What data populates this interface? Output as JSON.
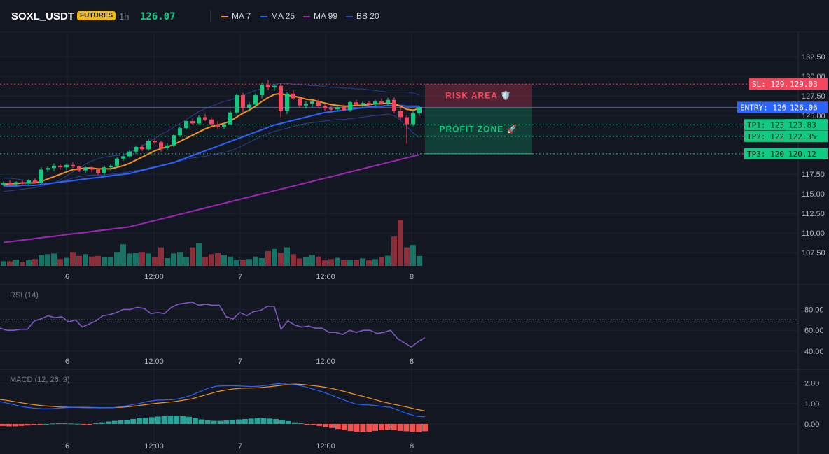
{
  "header": {
    "symbol": "SOXL_USDT",
    "badge": "FUTURES",
    "timeframe": "1h",
    "price": "126.07",
    "legend": [
      {
        "name": "MA 7",
        "color": "#f7931a"
      },
      {
        "name": "MA 25",
        "color": "#2962ff"
      },
      {
        "name": "MA 99",
        "color": "#9c27b0"
      },
      {
        "name": "BB 20",
        "color": "#3049a8"
      }
    ]
  },
  "colors": {
    "up": "#0ecb81",
    "down": "#f6465d",
    "grid": "#1e222d",
    "axis": "#b2b5be"
  },
  "chart_data": [
    {
      "type": "candlestick",
      "panel": "price",
      "ylim": [
        106.0,
        133.5
      ],
      "y_ticks": [
        "132.50",
        "130.00",
        "127.50",
        "125.00",
        "122.50",
        "120.00",
        "117.50",
        "115.00",
        "112.50",
        "110.00",
        "107.50"
      ],
      "x_labels": [
        "6",
        "12:00",
        "7",
        "12:00",
        "8"
      ],
      "candles": [
        [
          116.2,
          116.6,
          116.0,
          116.4
        ],
        [
          116.4,
          116.7,
          116.1,
          116.3
        ],
        [
          116.3,
          116.6,
          116.0,
          116.5
        ],
        [
          116.5,
          116.8,
          116.2,
          116.3
        ],
        [
          116.3,
          116.9,
          116.1,
          116.7
        ],
        [
          116.7,
          117.0,
          116.3,
          116.4
        ],
        [
          116.4,
          118.4,
          116.3,
          118.1
        ],
        [
          118.1,
          118.5,
          117.8,
          118.3
        ],
        [
          118.3,
          118.9,
          117.9,
          118.6
        ],
        [
          118.6,
          118.8,
          118.1,
          118.4
        ],
        [
          118.4,
          118.9,
          118.0,
          118.7
        ],
        [
          118.7,
          119.0,
          118.3,
          118.5
        ],
        [
          118.5,
          118.6,
          117.8,
          118.0
        ],
        [
          118.0,
          118.6,
          117.6,
          118.3
        ],
        [
          118.3,
          118.5,
          117.8,
          118.1
        ],
        [
          118.1,
          118.3,
          117.4,
          117.7
        ],
        [
          117.7,
          118.6,
          117.4,
          118.4
        ],
        [
          118.4,
          118.8,
          118.0,
          118.6
        ],
        [
          118.6,
          119.7,
          118.4,
          119.5
        ],
        [
          119.5,
          120.0,
          119.2,
          119.8
        ],
        [
          119.8,
          120.6,
          119.6,
          120.4
        ],
        [
          120.4,
          121.2,
          120.1,
          121.0
        ],
        [
          121.0,
          121.3,
          120.5,
          120.7
        ],
        [
          120.7,
          122.0,
          120.5,
          121.8
        ],
        [
          121.8,
          122.0,
          121.4,
          121.6
        ],
        [
          121.6,
          121.8,
          120.4,
          120.9
        ],
        [
          120.9,
          121.5,
          120.6,
          121.2
        ],
        [
          121.2,
          122.6,
          121.0,
          122.5
        ],
        [
          122.5,
          123.5,
          122.3,
          123.4
        ],
        [
          123.4,
          124.4,
          123.2,
          124.3
        ],
        [
          124.3,
          124.6,
          123.8,
          124.0
        ],
        [
          124.0,
          125.0,
          123.8,
          124.8
        ],
        [
          124.8,
          125.2,
          124.3,
          124.5
        ],
        [
          124.5,
          124.8,
          123.6,
          123.9
        ],
        [
          123.9,
          124.3,
          123.3,
          123.6
        ],
        [
          123.6,
          124.1,
          123.3,
          123.9
        ],
        [
          123.9,
          125.6,
          123.8,
          125.4
        ],
        [
          125.4,
          127.8,
          125.2,
          127.6
        ],
        [
          127.6,
          127.9,
          125.3,
          126.0
        ],
        [
          126.0,
          126.7,
          125.5,
          126.4
        ],
        [
          126.4,
          127.8,
          126.0,
          127.6
        ],
        [
          127.6,
          129.2,
          127.2,
          128.9
        ],
        [
          128.9,
          129.5,
          128.3,
          128.6
        ],
        [
          128.6,
          129.0,
          128.2,
          128.8
        ],
        [
          128.8,
          129.1,
          124.8,
          125.6
        ],
        [
          125.6,
          128.0,
          125.2,
          127.8
        ],
        [
          127.8,
          128.2,
          127.0,
          127.2
        ],
        [
          127.2,
          127.4,
          126.0,
          126.3
        ],
        [
          126.3,
          126.9,
          125.9,
          126.5
        ],
        [
          126.5,
          127.0,
          126.0,
          126.8
        ],
        [
          126.8,
          127.1,
          126.0,
          126.2
        ],
        [
          126.2,
          126.5,
          125.6,
          125.9
        ],
        [
          125.9,
          126.2,
          125.4,
          125.8
        ],
        [
          125.8,
          126.3,
          125.5,
          126.1
        ],
        [
          126.1,
          126.4,
          125.6,
          125.7
        ],
        [
          125.7,
          126.9,
          125.5,
          126.7
        ],
        [
          126.7,
          127.0,
          126.2,
          126.4
        ],
        [
          126.4,
          126.8,
          126.1,
          126.6
        ],
        [
          126.6,
          126.9,
          126.2,
          126.4
        ],
        [
          126.4,
          127.0,
          126.1,
          126.8
        ],
        [
          126.8,
          127.2,
          126.4,
          126.6
        ],
        [
          126.6,
          127.3,
          126.3,
          127.0
        ],
        [
          127.0,
          127.3,
          125.3,
          125.6
        ],
        [
          125.6,
          126.2,
          124.4,
          124.8
        ],
        [
          124.8,
          125.1,
          121.4,
          123.9
        ],
        [
          123.9,
          125.7,
          123.6,
          125.3
        ],
        [
          125.3,
          126.2,
          125.0,
          126.07
        ]
      ],
      "ma7": [
        116.2,
        116.3,
        116.3,
        116.4,
        116.4,
        116.4,
        116.6,
        116.9,
        117.2,
        117.5,
        117.8,
        118.1,
        118.2,
        118.3,
        118.3,
        118.2,
        118.2,
        118.2,
        118.4,
        118.6,
        118.9,
        119.3,
        119.7,
        120.1,
        120.5,
        120.8,
        121.0,
        121.3,
        121.7,
        122.1,
        122.5,
        122.9,
        123.3,
        123.6,
        123.8,
        124.0,
        124.3,
        124.8,
        125.3,
        125.7,
        126.2,
        126.8,
        127.3,
        127.7,
        127.8,
        127.6,
        127.5,
        127.3,
        127.1,
        127.0,
        126.8,
        126.6,
        126.4,
        126.3,
        126.2,
        126.2,
        126.3,
        126.3,
        126.4,
        126.5,
        126.5,
        126.6,
        126.5,
        126.2,
        125.8,
        125.7,
        125.9
      ],
      "ma25": [
        116.0,
        116.0,
        116.0,
        116.1,
        116.1,
        116.1,
        116.2,
        116.3,
        116.4,
        116.5,
        116.6,
        116.7,
        116.8,
        116.9,
        117.0,
        117.1,
        117.2,
        117.3,
        117.4,
        117.5,
        117.6,
        117.8,
        118.0,
        118.2,
        118.4,
        118.6,
        118.8,
        119.0,
        119.3,
        119.6,
        119.9,
        120.2,
        120.5,
        120.8,
        121.1,
        121.4,
        121.7,
        122.0,
        122.3,
        122.6,
        122.9,
        123.2,
        123.5,
        123.8,
        124.0,
        124.2,
        124.4,
        124.6,
        124.8,
        125.0,
        125.2,
        125.4,
        125.5,
        125.6,
        125.7,
        125.8,
        125.9,
        126.0,
        126.1,
        126.2,
        126.2,
        126.3,
        126.3,
        126.3,
        126.2,
        126.2,
        126.2
      ],
      "ma99": [
        108.8,
        108.9,
        109.0,
        109.1,
        109.2,
        109.3,
        109.4,
        109.5,
        109.6,
        109.7,
        109.8,
        109.9,
        110.0,
        110.1,
        110.2,
        110.3,
        110.4,
        110.5,
        110.6,
        110.7,
        110.8,
        111.0,
        111.2,
        111.4,
        111.6,
        111.8,
        112.0,
        112.2,
        112.4,
        112.6,
        112.8,
        113.0,
        113.2,
        113.4,
        113.6,
        113.8,
        114.0,
        114.2,
        114.4,
        114.6,
        114.8,
        115.0,
        115.2,
        115.4,
        115.6,
        115.8,
        116.0,
        116.2,
        116.4,
        116.6,
        116.8,
        117.0,
        117.2,
        117.4,
        117.6,
        117.8,
        118.0,
        118.2,
        118.4,
        118.6,
        118.8,
        119.0,
        119.2,
        119.4,
        119.6,
        119.8,
        120.0
      ],
      "bb_upper": [
        117.0,
        117.0,
        116.9,
        116.8,
        116.7,
        116.5,
        116.3,
        116.2,
        116.4,
        116.8,
        117.3,
        117.8,
        118.3,
        118.8,
        119.2,
        119.5,
        119.7,
        119.8,
        119.9,
        120.0,
        120.3,
        120.7,
        121.1,
        121.6,
        122.1,
        122.6,
        123.0,
        123.5,
        124.0,
        124.5,
        125.0,
        125.5,
        125.9,
        126.2,
        126.5,
        126.8,
        127.0,
        127.3,
        127.6,
        127.9,
        128.2,
        128.5,
        128.8,
        129.0,
        129.1,
        129.1,
        129.0,
        129.0,
        128.9,
        128.8,
        128.8,
        128.7,
        128.6,
        128.6,
        128.5,
        128.5,
        128.4,
        128.4,
        128.3,
        128.2,
        128.1,
        128.0,
        128.0,
        128.0,
        128.0,
        127.9,
        127.6
      ],
      "bb_lower": [
        115.3,
        115.4,
        115.5,
        115.6,
        115.7,
        115.8,
        116.0,
        116.2,
        116.4,
        116.6,
        116.8,
        117.0,
        117.2,
        117.3,
        117.4,
        117.4,
        117.4,
        117.5,
        117.6,
        117.7,
        117.8,
        118.0,
        118.1,
        118.3,
        118.5,
        118.6,
        118.8,
        119.0,
        119.2,
        119.4,
        119.6,
        119.7,
        119.8,
        120.0,
        120.1,
        120.3,
        120.5,
        120.8,
        121.2,
        121.6,
        122.0,
        122.4,
        122.7,
        123.0,
        123.2,
        123.4,
        123.6,
        123.8,
        124.0,
        124.1,
        124.2,
        124.3,
        124.4,
        124.5,
        124.5,
        124.6,
        124.7,
        124.8,
        124.9,
        125.0,
        125.1,
        125.2,
        125.0,
        124.4,
        123.6,
        122.8,
        122.2
      ],
      "volume": [
        15,
        15,
        20,
        12,
        18,
        22,
        35,
        38,
        40,
        22,
        26,
        45,
        32,
        38,
        30,
        32,
        28,
        28,
        45,
        70,
        40,
        42,
        45,
        40,
        28,
        60,
        25,
        40,
        45,
        28,
        60,
        75,
        28,
        38,
        42,
        35,
        30,
        18,
        20,
        22,
        30,
        25,
        48,
        55,
        42,
        60,
        38,
        24,
        28,
        35,
        30,
        18,
        22,
        26,
        20,
        18,
        20,
        24,
        18,
        22,
        28,
        33,
        95,
        150,
        60,
        68,
        32
      ],
      "volume_dir": [
        1,
        -1,
        1,
        -1,
        1,
        -1,
        1,
        1,
        1,
        -1,
        1,
        -1,
        -1,
        1,
        -1,
        -1,
        1,
        1,
        1,
        1,
        1,
        1,
        -1,
        1,
        -1,
        -1,
        1,
        1,
        1,
        1,
        -1,
        1,
        -1,
        -1,
        -1,
        1,
        1,
        1,
        -1,
        1,
        1,
        1,
        -1,
        1,
        -1,
        1,
        -1,
        -1,
        1,
        1,
        -1,
        -1,
        -1,
        1,
        -1,
        1,
        -1,
        1,
        -1,
        1,
        -1,
        1,
        -1,
        -1,
        -1,
        1,
        1
      ],
      "annotations": {
        "sl": {
          "value": 129.03,
          "label": "SL: 129.03",
          "value_label": "129.03",
          "color": "#f6465d"
        },
        "entry": {
          "value": 126.06,
          "label": "ENTRY: 126.06",
          "value_label": "126.06",
          "color": "#2962ff"
        },
        "tps": [
          {
            "value": 123.83,
            "label": "TP1: 123.83",
            "value_label": "123.83"
          },
          {
            "value": 122.35,
            "label": "TP2: 122.35",
            "value_label": "122.35"
          },
          {
            "value": 120.12,
            "label": "TP3: 120.12",
            "value_label": "120.12"
          }
        ],
        "risk_area_label": "RISK AREA 🛡️",
        "profit_zone_label": "PROFIT ZONE 🚀"
      }
    },
    {
      "type": "line",
      "panel": "rsi",
      "title": "RSI (14)",
      "ylim": [
        38,
        95
      ],
      "y_ticks": [
        "80.00",
        "60.00",
        "40.00"
      ],
      "x_labels": [
        "6",
        "12:00",
        "7",
        "12:00",
        "8"
      ],
      "level": 70,
      "values": [
        62,
        60,
        60,
        61,
        61,
        69,
        71,
        74,
        72,
        73,
        68,
        70,
        63,
        66,
        69,
        74,
        75,
        77,
        80,
        80,
        82,
        81,
        76,
        77,
        76,
        82,
        85,
        86,
        87,
        84,
        85,
        84,
        84,
        73,
        71,
        77,
        74,
        78,
        79,
        83,
        83,
        61,
        69,
        65,
        63,
        64,
        62,
        62,
        58,
        58,
        56,
        60,
        58,
        60,
        60,
        57,
        58,
        60,
        52,
        48,
        44,
        49,
        53
      ]
    },
    {
      "type": "line",
      "panel": "macd",
      "title": "MACD (12, 26, 9)",
      "ylim": [
        -0.55,
        2.4
      ],
      "y_ticks": [
        "2.00",
        "1.00",
        "0.00"
      ],
      "x_labels": [
        "6",
        "12:00",
        "7",
        "12:00",
        "8"
      ],
      "macd": [
        1.1,
        1.0,
        0.9,
        0.82,
        0.77,
        0.74,
        0.75,
        0.78,
        0.81,
        0.82,
        0.82,
        0.81,
        0.79,
        0.8,
        0.85,
        0.92,
        1.0,
        1.1,
        1.16,
        1.18,
        1.19,
        1.27,
        1.4,
        1.58,
        1.75,
        1.85,
        1.87,
        1.87,
        1.85,
        1.83,
        1.85,
        1.91,
        1.97,
        1.95,
        1.92,
        1.84,
        1.72,
        1.6,
        1.45,
        1.28,
        1.12,
        0.98,
        0.94,
        0.92,
        0.86,
        0.82,
        0.66,
        0.5,
        0.38,
        0.35
      ],
      "signal": [
        1.2,
        1.14,
        1.07,
        1.0,
        0.94,
        0.89,
        0.86,
        0.83,
        0.82,
        0.81,
        0.8,
        0.8,
        0.79,
        0.8,
        0.82,
        0.85,
        0.9,
        0.96,
        1.01,
        1.05,
        1.09,
        1.15,
        1.22,
        1.34,
        1.46,
        1.58,
        1.66,
        1.72,
        1.75,
        1.76,
        1.78,
        1.82,
        1.87,
        1.92,
        1.95,
        1.93,
        1.88,
        1.83,
        1.76,
        1.67,
        1.56,
        1.44,
        1.34,
        1.22,
        1.1,
        1.0,
        0.91,
        0.82,
        0.72,
        0.64
      ],
      "histogram": [
        -0.1,
        -0.12,
        -0.12,
        -0.1,
        -0.08,
        -0.06,
        -0.03,
        0.0,
        0.02,
        0.03,
        0.03,
        0.02,
        0.01,
        -0.02,
        -0.05,
        0.04,
        0.08,
        0.12,
        0.15,
        0.17,
        0.2,
        0.24,
        0.28,
        0.3,
        0.33,
        0.36,
        0.38,
        0.4,
        0.41,
        0.38,
        0.35,
        0.28,
        0.22,
        0.18,
        0.15,
        0.15,
        0.17,
        0.2,
        0.22,
        0.24,
        0.26,
        0.28,
        0.28,
        0.26,
        0.24,
        0.2,
        0.14,
        0.08,
        0.03,
        -0.02,
        -0.06,
        -0.1,
        -0.15,
        -0.2,
        -0.25,
        -0.3,
        -0.35,
        -0.38,
        -0.4,
        -0.38,
        -0.34,
        -0.3,
        -0.28,
        -0.3,
        -0.34,
        -0.36,
        -0.38,
        -0.4,
        -0.36
      ]
    }
  ]
}
